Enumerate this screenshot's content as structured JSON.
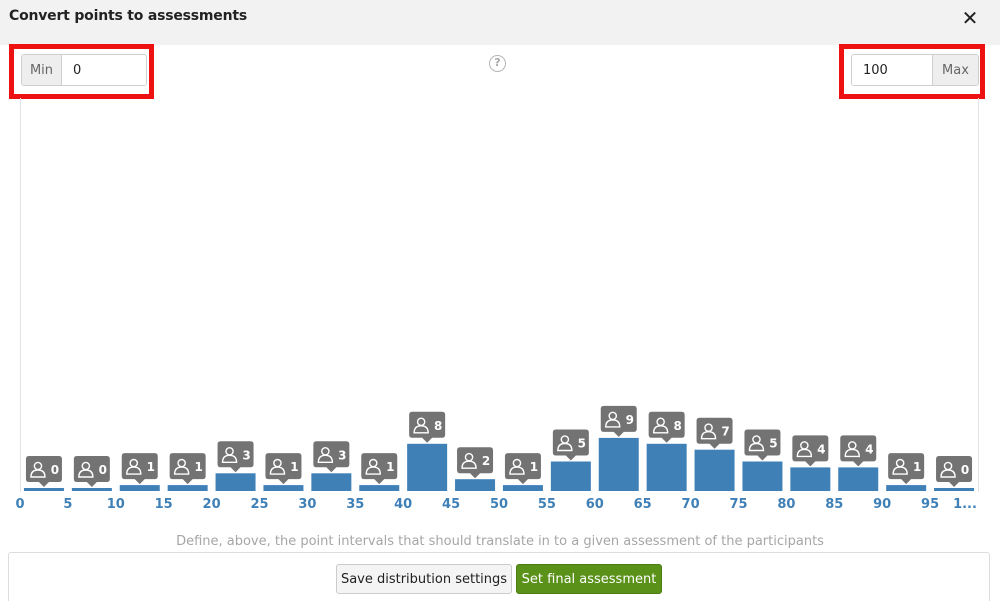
{
  "dialog": {
    "title": "Convert points to assessments",
    "close_glyph": "✕"
  },
  "range": {
    "min_label": "Min",
    "min_value": "0",
    "max_label": "Max",
    "max_value": "100"
  },
  "help_glyph": "?",
  "hint": "Define, above, the point intervals that should translate in to a given assessment of the participants",
  "buttons": {
    "save_label": "Save distribution settings",
    "final_label": "Set final assessment"
  },
  "colors": {
    "bar": "#3f80b7",
    "badge": "#737373",
    "tick_label": "#3f80b7",
    "highlight": "#ee1111",
    "primary_button": "#5a9119"
  },
  "chart_data": {
    "type": "bar",
    "x_tick_labels": [
      "0",
      "5",
      "10",
      "15",
      "20",
      "25",
      "30",
      "35",
      "40",
      "45",
      "50",
      "55",
      "60",
      "65",
      "70",
      "75",
      "80",
      "85",
      "90",
      "95",
      "1..."
    ],
    "bins": [
      "0-5",
      "5-10",
      "10-15",
      "15-20",
      "20-25",
      "25-30",
      "30-35",
      "35-40",
      "40-45",
      "45-50",
      "50-55",
      "55-60",
      "60-65",
      "65-70",
      "70-75",
      "75-80",
      "80-85",
      "85-90",
      "90-95",
      "95-100"
    ],
    "values": [
      0,
      0,
      1,
      1,
      3,
      1,
      3,
      1,
      8,
      2,
      1,
      5,
      9,
      8,
      7,
      5,
      4,
      4,
      1,
      0
    ],
    "ylim": [
      0,
      9
    ],
    "badge_icon": "person-icon",
    "grid": false,
    "legend": "none"
  }
}
